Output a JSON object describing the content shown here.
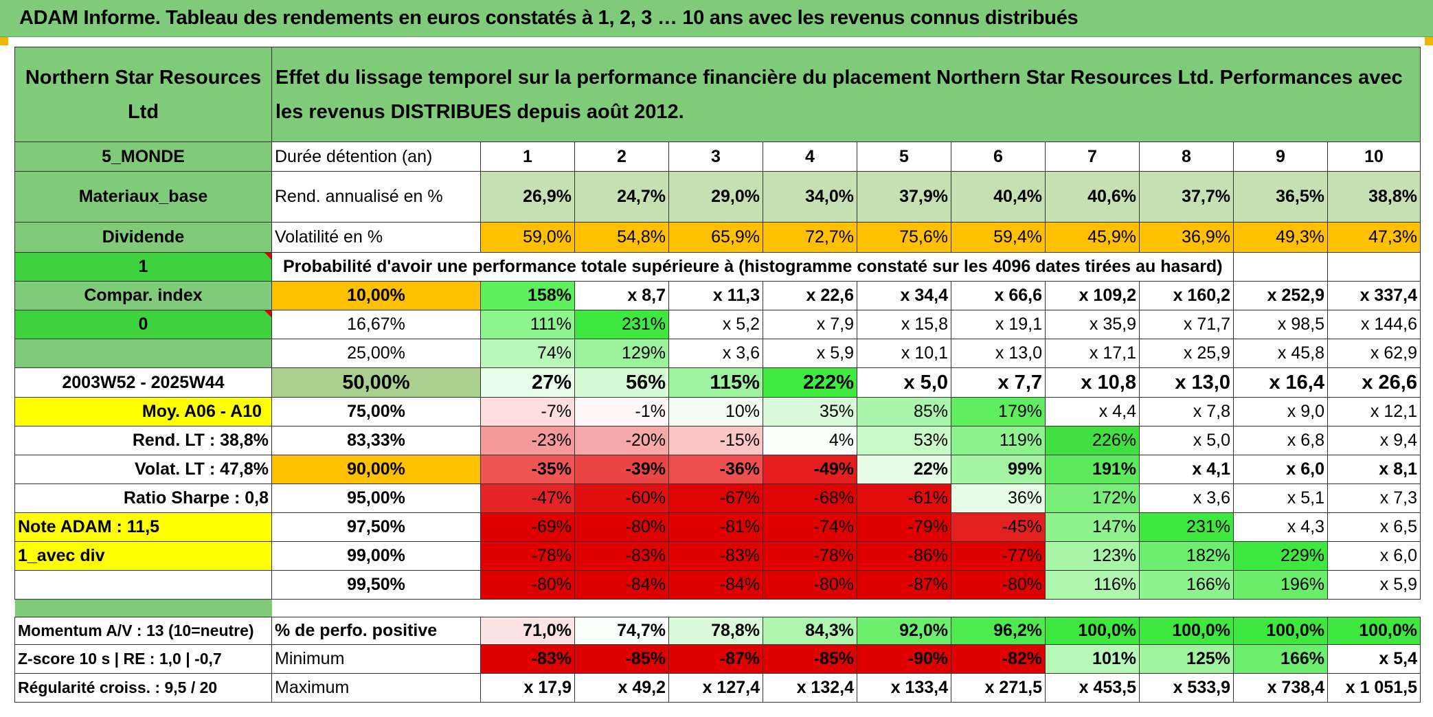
{
  "title": "ADAM Informe. Tableau des rendements en euros constatés à 1, 2, 3 … 10 ans avec les revenus connus distribués",
  "header": {
    "company": "Northern Star Resources Ltd",
    "description": "Effet du lissage temporel sur la performance financière du placement Northern Star Resources Ltd. Performances avec les revenus DISTRIBUES depuis août 2012."
  },
  "left": {
    "zone": "5_MONDE",
    "sector": "Materiaux_base",
    "income": "Dividende",
    "selector1": "1",
    "compar": "Compar. index",
    "selector2": "0",
    "period": "2003W52 - 2025W44",
    "moy": "Moy. A06 - A10",
    "rend_lt": "Rend. LT :   38,8%",
    "volat_lt": "Volat. LT :   47,8%",
    "sharpe": "Ratio Sharpe :    0,8",
    "note": "Note ADAM : 11,5",
    "avec_div": "1_avec div",
    "momentum": "Momentum A/V : 13 (10=neutre)",
    "zscore": "Z-score 10 s | RE : 1,0 | -0,7",
    "regularite": "Régularité croiss. : 9,5 / 20"
  },
  "labels": {
    "duree": "Durée détention (an)",
    "rend": "Rend. annualisé en %",
    "volat": "Volatilité en %",
    "proba": "Probabilité d'avoir une performance totale supérieure à (histogramme constaté sur les 4096 dates tirées au hasard)",
    "perfo_pos": "% de perfo. positive",
    "minimum": "Minimum",
    "maximum": "Maximum"
  },
  "years": [
    "1",
    "2",
    "3",
    "4",
    "5",
    "6",
    "7",
    "8",
    "9",
    "10"
  ],
  "rend": [
    "26,9%",
    "24,7%",
    "29,0%",
    "34,0%",
    "37,9%",
    "40,4%",
    "40,6%",
    "37,7%",
    "36,5%",
    "38,8%"
  ],
  "volat": [
    "59,0%",
    "54,8%",
    "65,9%",
    "72,7%",
    "75,6%",
    "59,4%",
    "45,9%",
    "36,9%",
    "49,3%",
    "47,3%"
  ],
  "proba_rows": [
    {
      "pct": "10,00%",
      "values": [
        "158%",
        "x 8,7",
        "x 11,3",
        "x 22,6",
        "x 34,4",
        "x 66,6",
        "x 109,2",
        "x 160,2",
        "x 252,9",
        "x 337,4"
      ]
    },
    {
      "pct": "16,67%",
      "values": [
        "111%",
        "231%",
        "x 5,2",
        "x 7,9",
        "x 15,8",
        "x 19,1",
        "x 35,9",
        "x 71,7",
        "x 98,5",
        "x 144,6"
      ]
    },
    {
      "pct": "25,00%",
      "values": [
        "74%",
        "129%",
        "x 3,6",
        "x 5,9",
        "x 10,1",
        "x 13,0",
        "x 17,1",
        "x 25,9",
        "x 45,8",
        "x 62,9"
      ]
    },
    {
      "pct": "50,00%",
      "values": [
        "27%",
        "56%",
        "115%",
        "222%",
        "x 5,0",
        "x 7,7",
        "x 10,8",
        "x 13,0",
        "x 16,4",
        "x 26,6"
      ]
    },
    {
      "pct": "75,00%",
      "values": [
        "-7%",
        "-1%",
        "10%",
        "35%",
        "85%",
        "179%",
        "x 4,4",
        "x 7,8",
        "x 9,0",
        "x 12,1"
      ]
    },
    {
      "pct": "83,33%",
      "values": [
        "-23%",
        "-20%",
        "-15%",
        "4%",
        "53%",
        "119%",
        "226%",
        "x 5,0",
        "x 6,8",
        "x 9,4"
      ]
    },
    {
      "pct": "90,00%",
      "values": [
        "-35%",
        "-39%",
        "-36%",
        "-49%",
        "22%",
        "99%",
        "191%",
        "x 4,1",
        "x 6,0",
        "x 8,1"
      ]
    },
    {
      "pct": "95,00%",
      "values": [
        "-47%",
        "-60%",
        "-67%",
        "-68%",
        "-61%",
        "36%",
        "172%",
        "x 3,6",
        "x 5,1",
        "x 7,3"
      ]
    },
    {
      "pct": "97,50%",
      "values": [
        "-69%",
        "-80%",
        "-81%",
        "-74%",
        "-79%",
        "-45%",
        "147%",
        "231%",
        "x 4,3",
        "x 6,5"
      ]
    },
    {
      "pct": "99,00%",
      "values": [
        "-78%",
        "-83%",
        "-83%",
        "-78%",
        "-86%",
        "-77%",
        "123%",
        "182%",
        "229%",
        "x 6,0"
      ]
    },
    {
      "pct": "99,50%",
      "values": [
        "-80%",
        "-84%",
        "-84%",
        "-80%",
        "-87%",
        "-80%",
        "116%",
        "166%",
        "196%",
        "x 5,9"
      ]
    }
  ],
  "perfo_pos": [
    "71,0%",
    "74,7%",
    "78,8%",
    "84,3%",
    "92,0%",
    "96,2%",
    "100,0%",
    "100,0%",
    "100,0%",
    "100,0%"
  ],
  "minimum": [
    "-83%",
    "-85%",
    "-87%",
    "-85%",
    "-90%",
    "-82%",
    "101%",
    "125%",
    "166%",
    "x 5,4"
  ],
  "maximum": [
    "x 17,9",
    "x 49,2",
    "x 127,4",
    "x 132,4",
    "x 133,4",
    "x 271,5",
    "x 453,5",
    "x 533,9",
    "x 738,4",
    "x 1 051,5"
  ],
  "colors": {
    "header_green": "#7fcb7a",
    "bright_green": "#3fd23f",
    "yellow": "#ffff00",
    "orange": "#ffc000",
    "red": "#e00000"
  }
}
